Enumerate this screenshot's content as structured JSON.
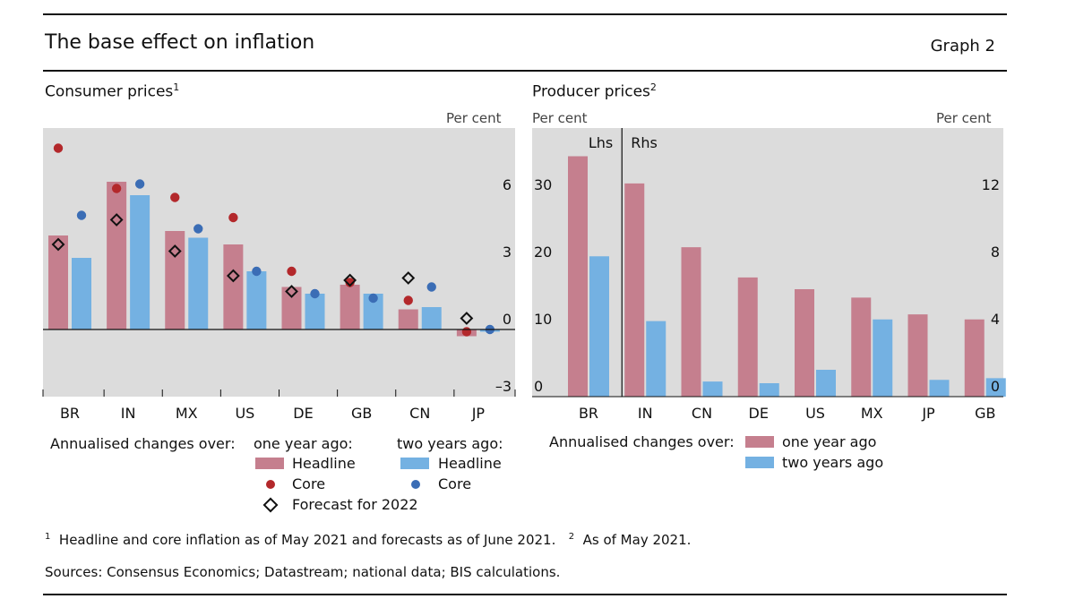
{
  "header": {
    "title": "The base effect on inflation",
    "graph_number": "Graph 2"
  },
  "colors": {
    "one_year_headline": "#c57f8e",
    "two_year_headline": "#74b1e2",
    "one_year_core": "#b3282b",
    "two_year_core": "#3b6db5",
    "forecast_marker": "#111111",
    "panel_bg": "#dcdcdc"
  },
  "left_legend": {
    "intro": "Annualised changes over:",
    "one_year_heading": "one year ago:",
    "two_year_heading": "two years ago:",
    "headline_1": "Headline",
    "core_1": "Core",
    "forecast": "Forecast for 2022",
    "headline_2": "Headline",
    "core_2": "Core"
  },
  "right_legend": {
    "intro": "Annualised changes over:",
    "one_year": "one year ago",
    "two_year": "two years ago"
  },
  "footnotes": {
    "note1_marker": "1",
    "note1": "Headline and core inflation as of May 2021 and forecasts as of June 2021.",
    "note2_marker": "2",
    "note2": "As of May 2021.",
    "sources": "Sources: Consensus Economics; Datastream; national data; BIS calculations."
  },
  "chart_data": [
    {
      "type": "bar",
      "title": "Consumer prices",
      "title_sup": "1",
      "unit_right": "Per cent",
      "categories": [
        "BR",
        "IN",
        "MX",
        "US",
        "DE",
        "GB",
        "CN",
        "JP"
      ],
      "series": [
        {
          "name": "Headline",
          "legend_group": "one year ago",
          "kind": "bar",
          "values": [
            4.2,
            6.6,
            4.4,
            3.8,
            1.9,
            2.0,
            0.9,
            -0.3
          ]
        },
        {
          "name": "Headline",
          "legend_group": "two years ago",
          "kind": "bar",
          "values": [
            3.2,
            6.0,
            4.1,
            2.6,
            1.6,
            1.6,
            1.0,
            -0.1
          ]
        },
        {
          "name": "Core",
          "legend_group": "one year ago",
          "kind": "dot",
          "values": [
            8.1,
            6.3,
            5.9,
            5.0,
            2.6,
            2.1,
            1.3,
            -0.1
          ]
        },
        {
          "name": "Core",
          "legend_group": "two years ago",
          "kind": "dot",
          "values": [
            5.1,
            6.5,
            4.5,
            2.6,
            1.6,
            1.4,
            1.9,
            0.0
          ]
        },
        {
          "name": "Forecast for 2022",
          "kind": "diamond",
          "values": [
            3.8,
            4.9,
            3.5,
            2.4,
            1.7,
            2.2,
            2.3,
            0.5
          ]
        }
      ],
      "yaxis_right": {
        "ylim": [
          -3,
          9
        ],
        "ticks": [
          -3,
          0,
          3,
          6
        ],
        "tick_labels": [
          "–3",
          "0",
          "3",
          "6"
        ]
      },
      "grid": false,
      "legend_position": "bottom"
    },
    {
      "type": "bar",
      "title": "Producer prices",
      "title_sup": "2",
      "unit_left": "Per cent",
      "unit_right": "Per cent",
      "panel_labels": [
        "Lhs",
        "Rhs"
      ],
      "categories": [
        "BR",
        "IN",
        "CN",
        "DE",
        "US",
        "MX",
        "JP",
        "GB"
      ],
      "axis_assignment": [
        "left",
        "right",
        "right",
        "right",
        "right",
        "right",
        "right",
        "right"
      ],
      "series": [
        {
          "name": "one year ago",
          "values": [
            35.8,
            12.7,
            8.9,
            7.1,
            6.4,
            5.9,
            4.9,
            4.6
          ]
        },
        {
          "name": "two years ago",
          "values": [
            20.9,
            4.5,
            0.9,
            0.8,
            1.6,
            4.6,
            1.0,
            1.1
          ]
        }
      ],
      "yaxis_left": {
        "ylim": [
          0,
          40
        ],
        "ticks": [
          0,
          10,
          20,
          30
        ],
        "tick_labels": [
          "0",
          "10",
          "20",
          "30"
        ]
      },
      "yaxis_right": {
        "ylim": [
          0,
          16
        ],
        "ticks": [
          0,
          4,
          8,
          12
        ],
        "tick_labels": [
          "0",
          "4",
          "8",
          "12"
        ]
      },
      "grid": false,
      "legend_position": "bottom"
    }
  ]
}
